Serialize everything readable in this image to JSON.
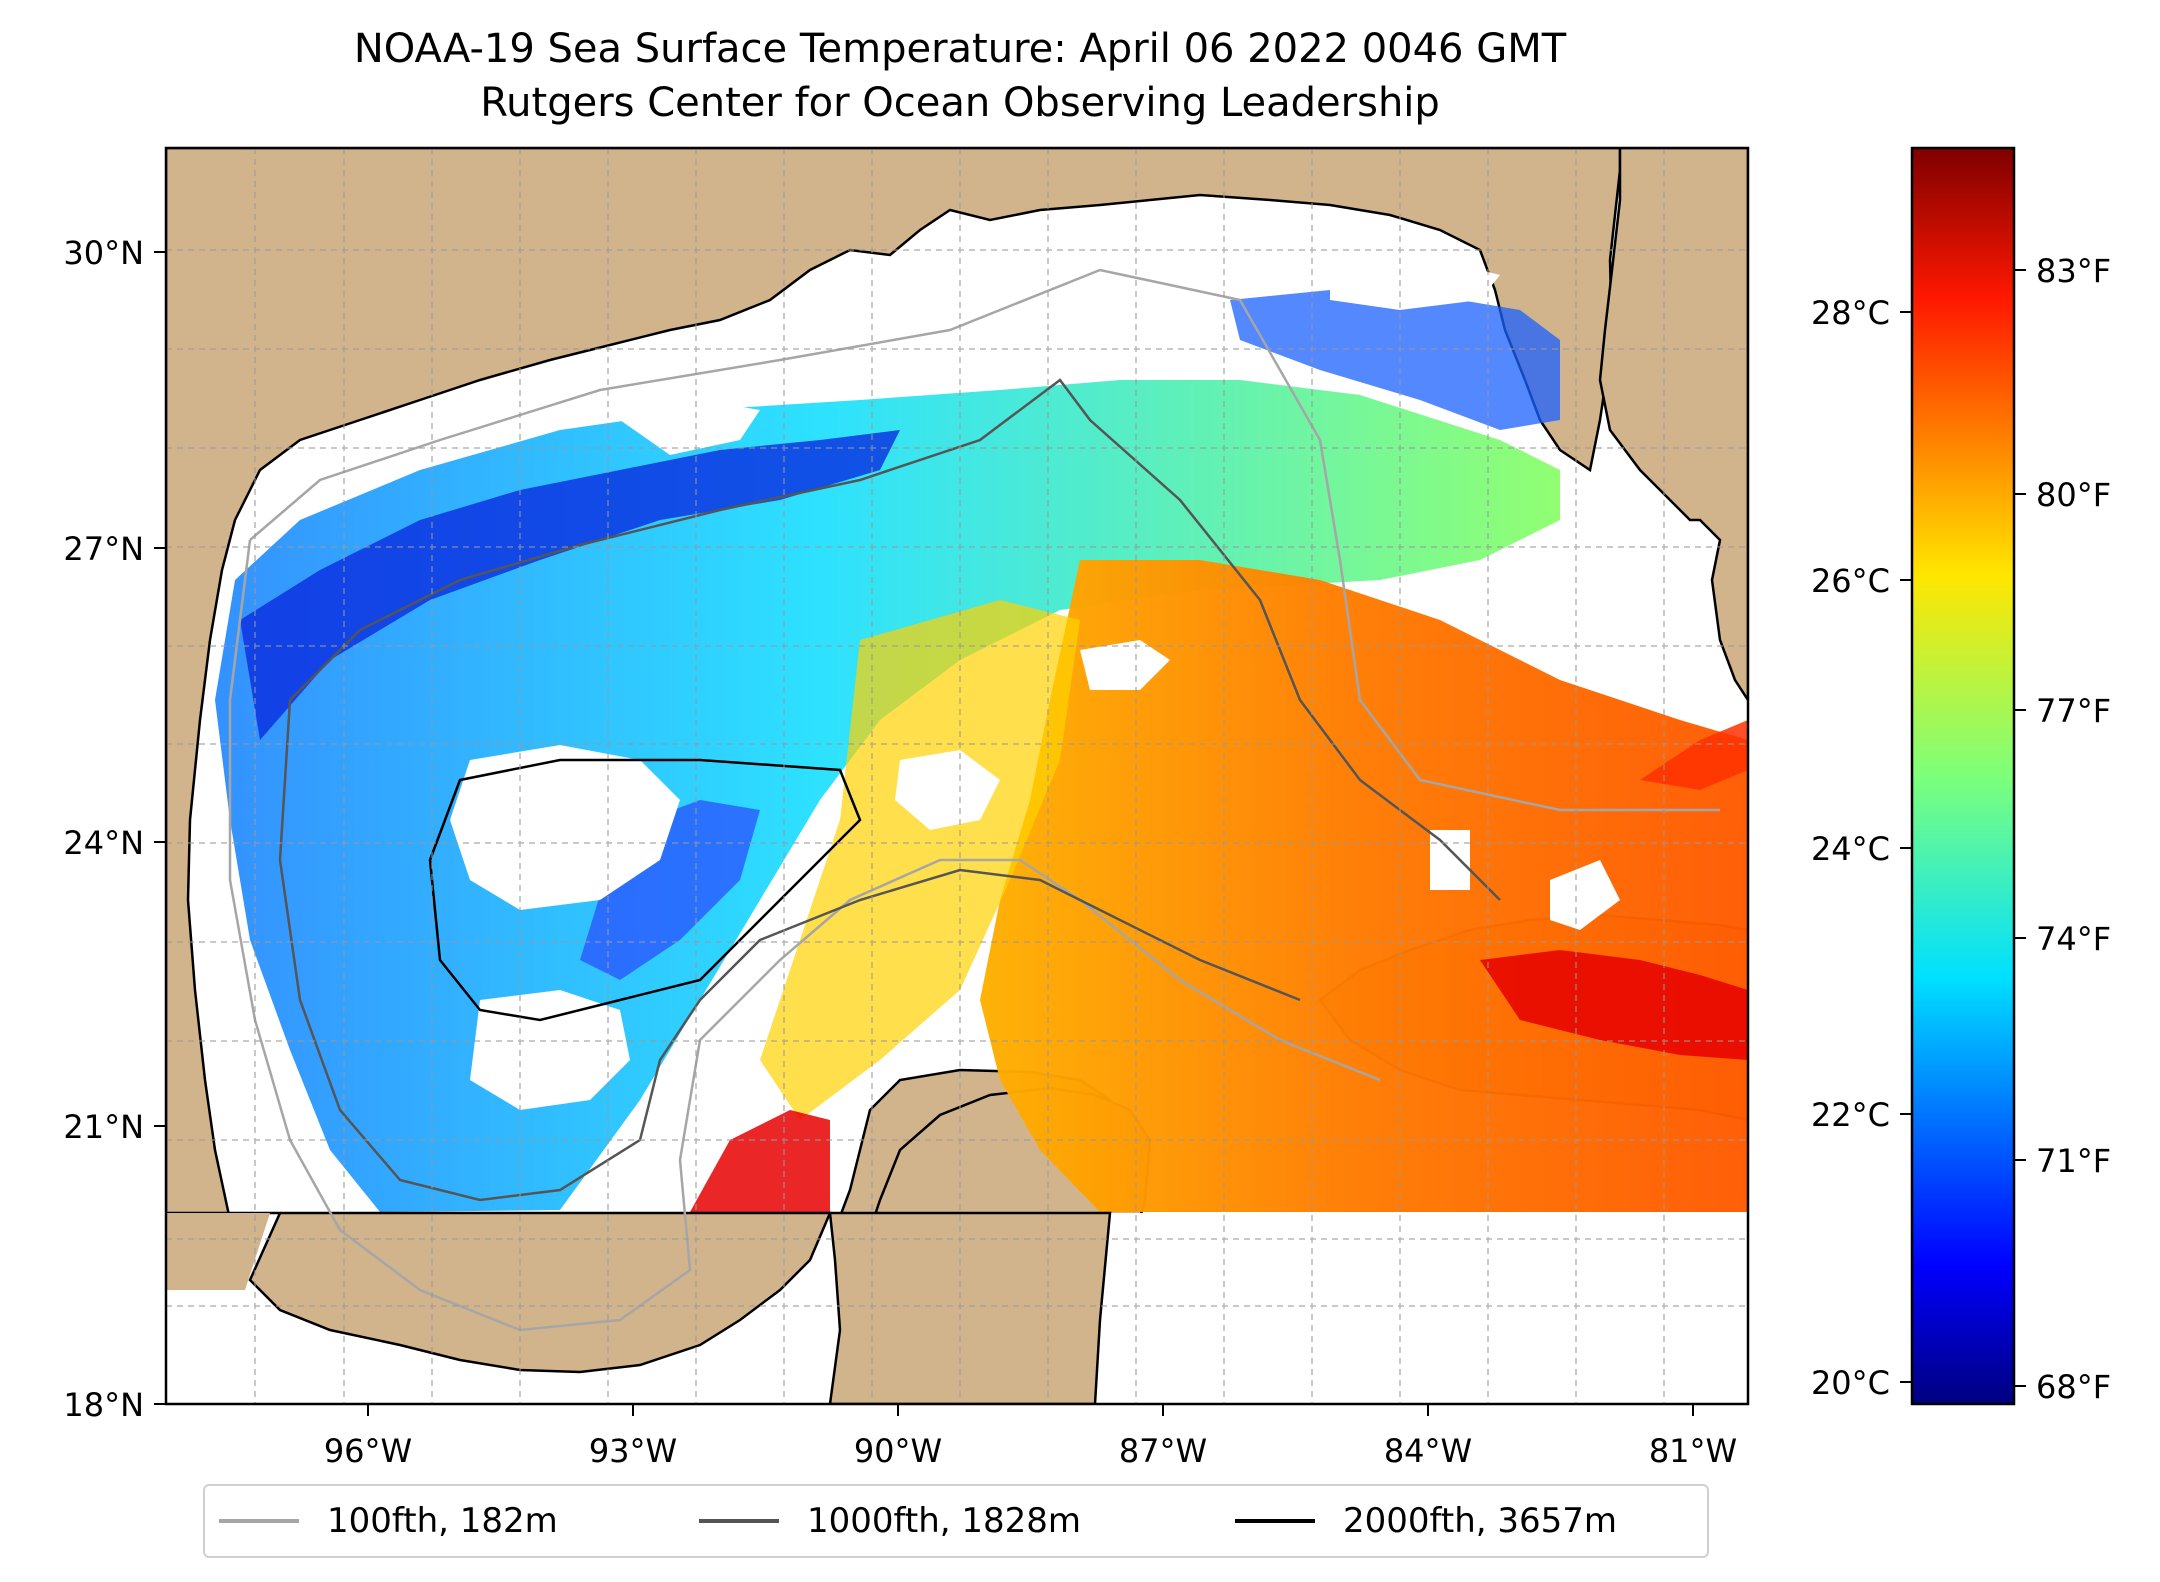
{
  "title": {
    "line1": "NOAA-19 Sea Surface Temperature: April 06 2022 0046 GMT",
    "line2": "Rutgers Center for Ocean Observing Leadership"
  },
  "map": {
    "lon_range": [
      -98.0,
      -80.0
    ],
    "lat_range": [
      18.0,
      31.0
    ],
    "gridlines": true,
    "land_color": "#d2b48c",
    "lon_ticks": [
      "96°W",
      "93°W",
      "90°W",
      "87°W",
      "84°W",
      "81°W"
    ],
    "lat_ticks": [
      "30°N",
      "27°N",
      "24°N",
      "21°N",
      "18°N"
    ]
  },
  "colorbar": {
    "colormap": "jet",
    "celsius_ticks": [
      "28°C",
      "26°C",
      "24°C",
      "22°C",
      "20°C"
    ],
    "fahrenheit_ticks": [
      "83°F",
      "80°F",
      "77°F",
      "74°F",
      "71°F",
      "68°F"
    ]
  },
  "legend": {
    "items": [
      {
        "label": "100fth, 182m",
        "color": "#a6a6a6"
      },
      {
        "label": "1000fth, 1828m",
        "color": "#555555"
      },
      {
        "label": "2000fth, 3657m",
        "color": "#000000"
      }
    ]
  }
}
